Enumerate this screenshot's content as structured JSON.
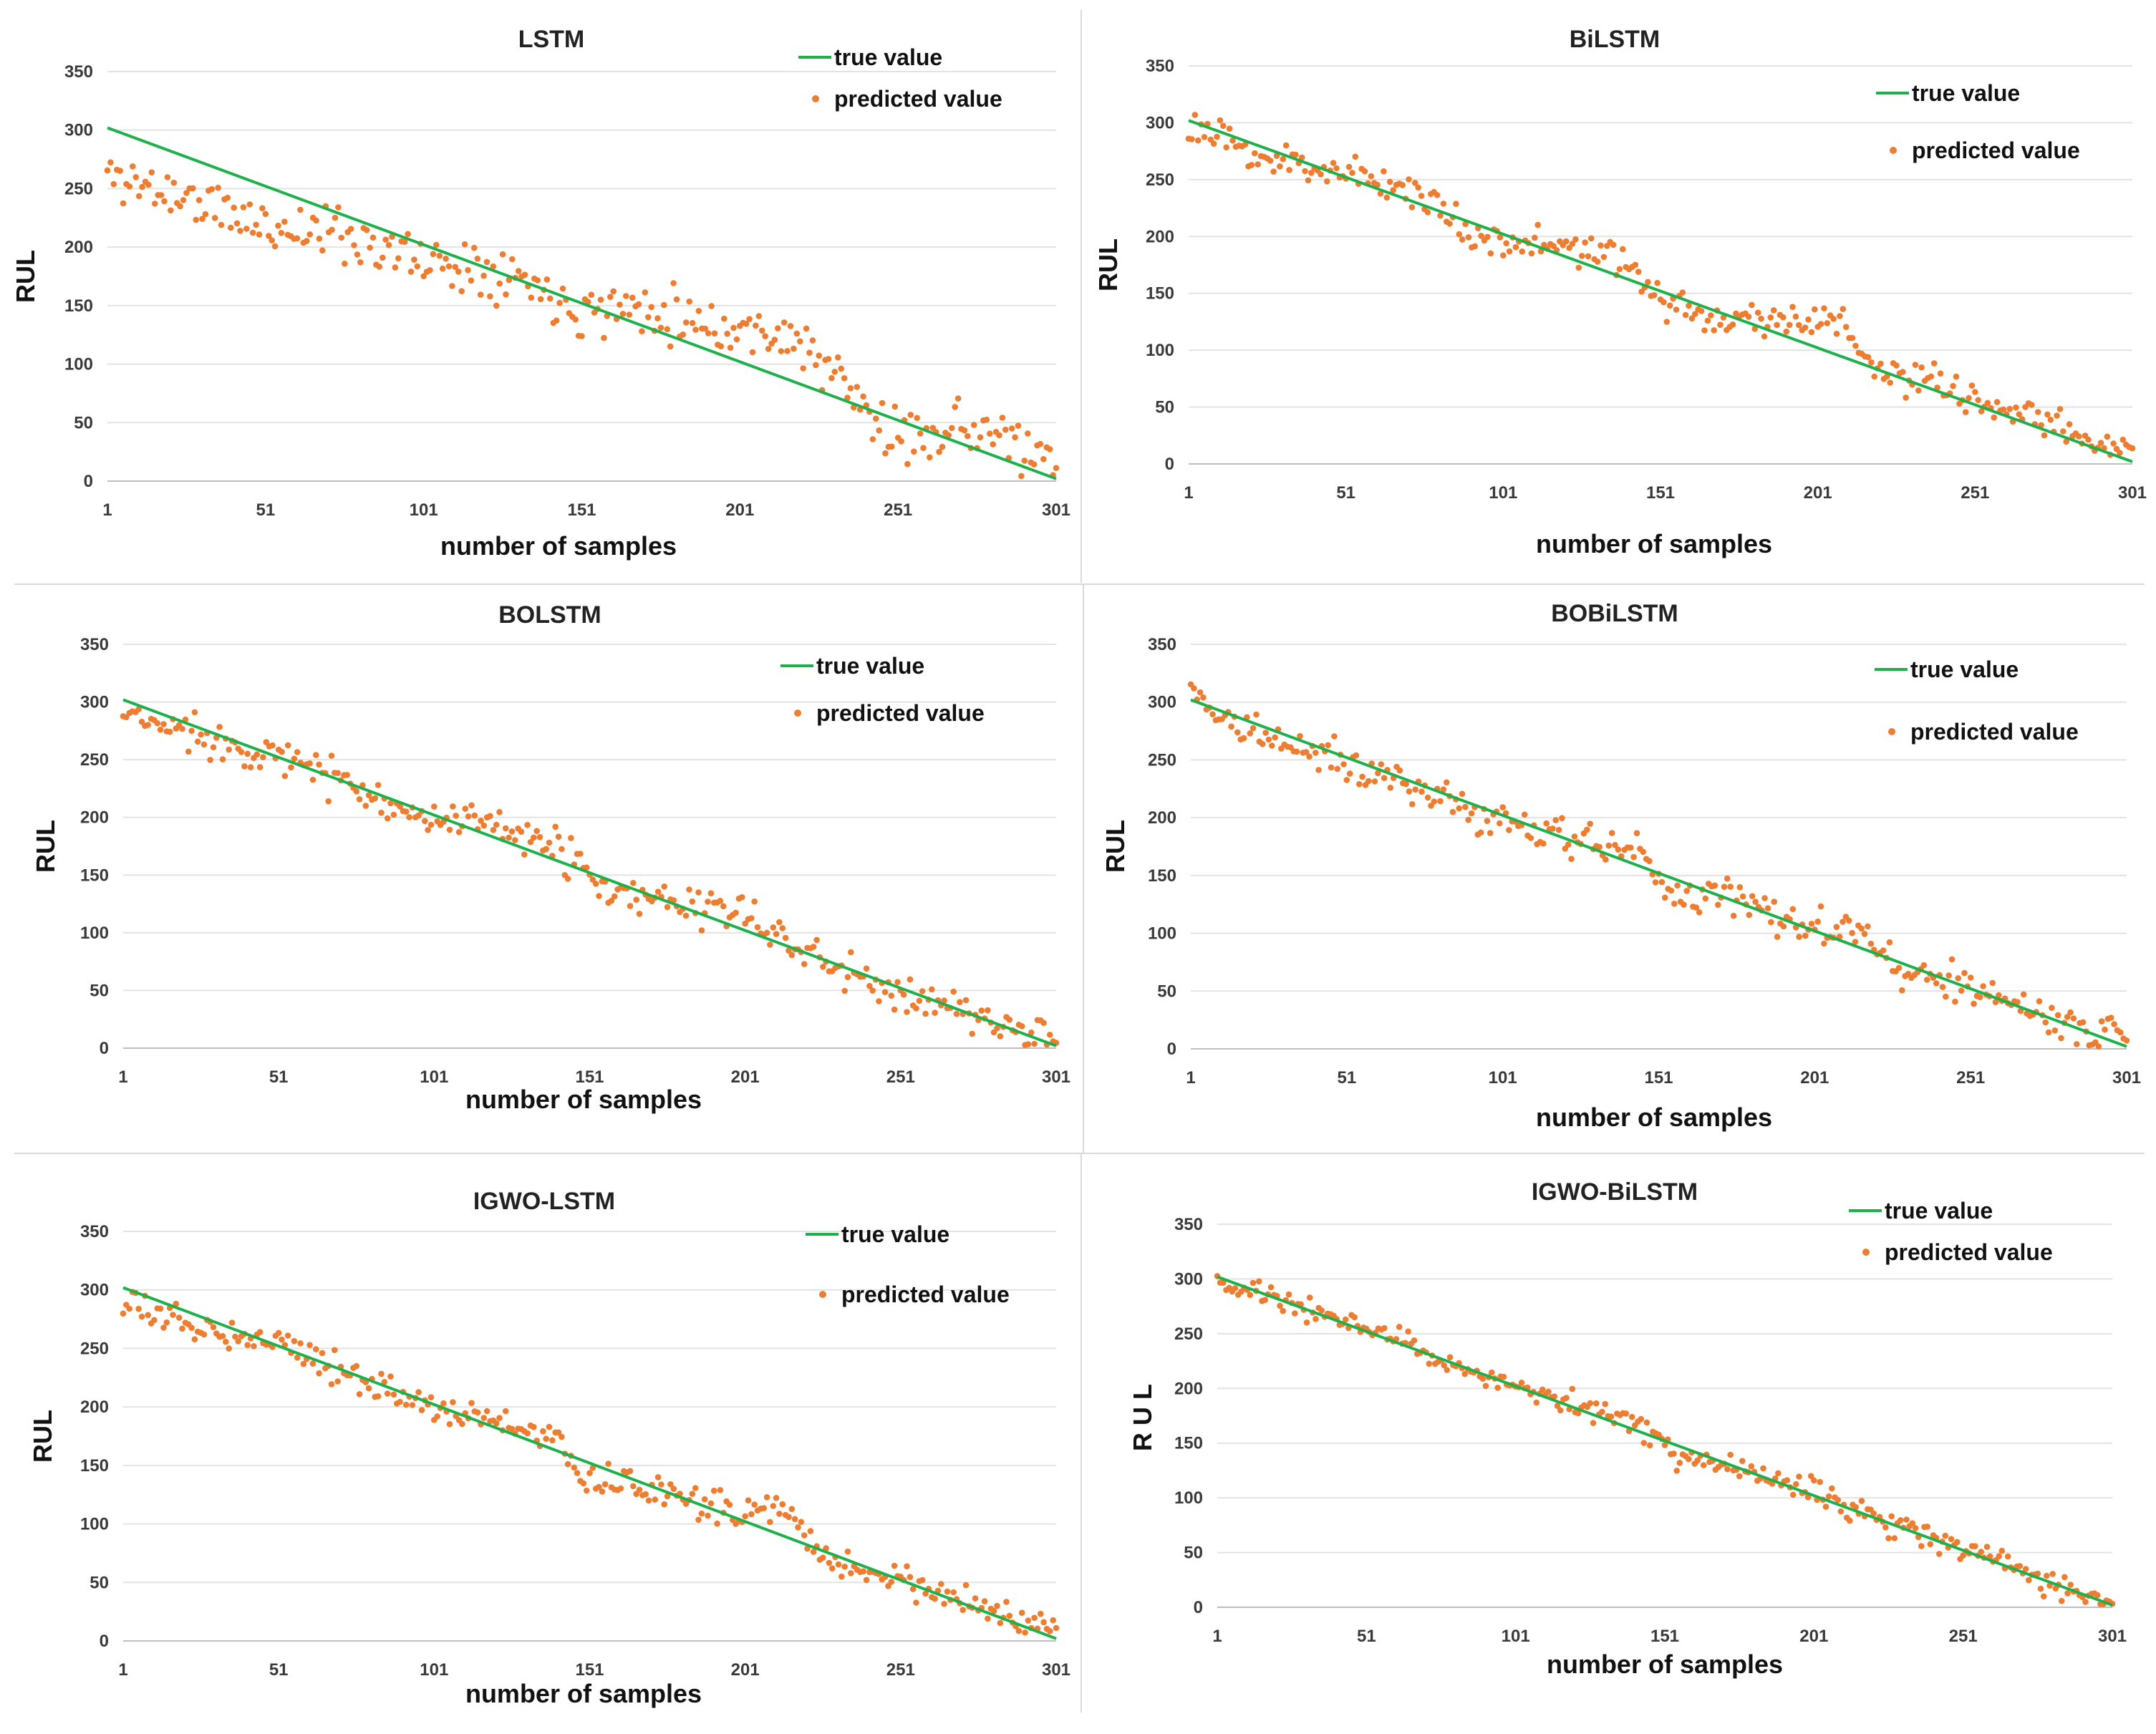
{
  "colors": {
    "true_line": "#1db04b",
    "predicted": "#ed7d31",
    "grid": "#e3e3e3",
    "divider": "#cfcfcf"
  },
  "chart_data": [
    {
      "type": "scatter",
      "title": "LSTM",
      "xlabel": "number of samples",
      "ylabel": "RUL",
      "xlim": [
        1,
        301
      ],
      "ylim": [
        0,
        350
      ],
      "xticks": [
        "1",
        "51",
        "101",
        "151",
        "201",
        "251",
        "301"
      ],
      "yticks": [
        "0",
        "50",
        "100",
        "150",
        "200",
        "250",
        "300",
        "350"
      ],
      "grid": true,
      "legend_position": "top-right",
      "series": [
        {
          "name": "true value",
          "kind": "line",
          "x": [
            1,
            301
          ],
          "y": [
            302,
            2
          ]
        },
        {
          "name": "predicted value",
          "kind": "scatter",
          "bias": [
            [
              1,
              -40
            ],
            [
              25,
              -35
            ],
            [
              50,
              -35
            ],
            [
              75,
              -15
            ],
            [
              100,
              -15
            ],
            [
              125,
              5
            ],
            [
              150,
              -5
            ],
            [
              175,
              20
            ],
            [
              200,
              25
            ],
            [
              215,
              40
            ],
            [
              230,
              20
            ],
            [
              250,
              -20
            ],
            [
              265,
              10
            ],
            [
              280,
              20
            ],
            [
              300,
              5
            ]
          ],
          "noise": 18,
          "seed": 11
        }
      ]
    },
    {
      "type": "scatter",
      "title": "BiLSTM",
      "xlabel": "number of samples",
      "ylabel": "RUL",
      "xlim": [
        1,
        301
      ],
      "ylim": [
        0,
        350
      ],
      "xticks": [
        "1",
        "51",
        "101",
        "151",
        "201",
        "251",
        "301"
      ],
      "yticks": [
        "0",
        "50",
        "100",
        "150",
        "200",
        "250",
        "300",
        "350"
      ],
      "grid": true,
      "legend_position": "top-right",
      "series": [
        {
          "name": "true value",
          "kind": "line",
          "x": [
            1,
            301
          ],
          "y": [
            302,
            2
          ]
        },
        {
          "name": "predicted value",
          "kind": "scatter",
          "bias": [
            [
              1,
              -5
            ],
            [
              25,
              -10
            ],
            [
              50,
              5
            ],
            [
              75,
              10
            ],
            [
              90,
              -10
            ],
            [
              110,
              0
            ],
            [
              130,
              15
            ],
            [
              145,
              5
            ],
            [
              155,
              -10
            ],
            [
              170,
              -5
            ],
            [
              190,
              15
            ],
            [
              210,
              30
            ],
            [
              220,
              -5
            ],
            [
              240,
              5
            ],
            [
              260,
              5
            ],
            [
              280,
              5
            ],
            [
              300,
              10
            ]
          ],
          "noise": 12,
          "seed": 23
        }
      ]
    },
    {
      "type": "scatter",
      "title": "BOLSTM",
      "xlabel": "number of samples",
      "ylabel": "RUL",
      "xlim": [
        1,
        301
      ],
      "ylim": [
        0,
        350
      ],
      "xticks": [
        "1",
        "51",
        "101",
        "151",
        "201",
        "251",
        "301"
      ],
      "yticks": [
        "0",
        "50",
        "100",
        "150",
        "200",
        "250",
        "300",
        "350"
      ],
      "grid": true,
      "legend_position": "top-right",
      "series": [
        {
          "name": "true value",
          "kind": "line",
          "x": [
            1,
            301
          ],
          "y": [
            302,
            2
          ]
        },
        {
          "name": "predicted value",
          "kind": "scatter",
          "bias": [
            [
              1,
              -15
            ],
            [
              25,
              -5
            ],
            [
              50,
              0
            ],
            [
              75,
              0
            ],
            [
              100,
              -5
            ],
            [
              125,
              10
            ],
            [
              145,
              10
            ],
            [
              155,
              -15
            ],
            [
              170,
              -5
            ],
            [
              190,
              10
            ],
            [
              210,
              10
            ],
            [
              230,
              -5
            ],
            [
              250,
              -5
            ],
            [
              270,
              0
            ],
            [
              300,
              5
            ]
          ],
          "noise": 13,
          "seed": 37
        }
      ]
    },
    {
      "type": "scatter",
      "title": "BOBiLSTM",
      "xlabel": "number of samples",
      "ylabel": "RUL",
      "xlim": [
        1,
        301
      ],
      "ylim": [
        0,
        350
      ],
      "xticks": [
        "1",
        "51",
        "101",
        "151",
        "201",
        "251",
        "301"
      ],
      "yticks": [
        "0",
        "50",
        "100",
        "150",
        "200",
        "250",
        "300",
        "350"
      ],
      "grid": true,
      "legend_position": "top-right",
      "series": [
        {
          "name": "true value",
          "kind": "line",
          "x": [
            1,
            301
          ],
          "y": [
            302,
            2
          ]
        },
        {
          "name": "predicted value",
          "kind": "scatter",
          "bias": [
            [
              1,
              5
            ],
            [
              25,
              -10
            ],
            [
              50,
              -5
            ],
            [
              75,
              -5
            ],
            [
              100,
              -5
            ],
            [
              125,
              0
            ],
            [
              145,
              10
            ],
            [
              155,
              -15
            ],
            [
              175,
              5
            ],
            [
              200,
              0
            ],
            [
              215,
              15
            ],
            [
              230,
              -10
            ],
            [
              250,
              0
            ],
            [
              270,
              0
            ],
            [
              300,
              5
            ]
          ],
          "noise": 13,
          "seed": 41
        }
      ]
    },
    {
      "type": "scatter",
      "title": "IGWO-LSTM",
      "xlabel": "number of samples",
      "ylabel": "RUL",
      "xlim": [
        1,
        301
      ],
      "ylim": [
        0,
        350
      ],
      "xticks": [
        "1",
        "51",
        "101",
        "151",
        "201",
        "251",
        "301"
      ],
      "yticks": [
        "0",
        "50",
        "100",
        "150",
        "200",
        "250",
        "300",
        "350"
      ],
      "grid": true,
      "legend_position": "top-right",
      "series": [
        {
          "name": "true value",
          "kind": "line",
          "x": [
            1,
            301
          ],
          "y": [
            302,
            2
          ]
        },
        {
          "name": "predicted value",
          "kind": "scatter",
          "bias": [
            [
              1,
              -15
            ],
            [
              25,
              -10
            ],
            [
              50,
              5
            ],
            [
              75,
              0
            ],
            [
              100,
              -5
            ],
            [
              120,
              5
            ],
            [
              140,
              10
            ],
            [
              150,
              -15
            ],
            [
              175,
              0
            ],
            [
              200,
              5
            ],
            [
              215,
              25
            ],
            [
              225,
              -5
            ],
            [
              250,
              0
            ],
            [
              270,
              0
            ],
            [
              300,
              5
            ]
          ],
          "noise": 10,
          "seed": 53
        }
      ]
    },
    {
      "type": "scatter",
      "title": "IGWO-BiLSTM",
      "xlabel": "number of samples",
      "ylabel": "R U L",
      "xlim": [
        1,
        301
      ],
      "ylim": [
        0,
        350
      ],
      "xticks": [
        "1",
        "51",
        "101",
        "151",
        "201",
        "251",
        "301"
      ],
      "yticks": [
        "0",
        "50",
        "100",
        "150",
        "200",
        "250",
        "300",
        "350"
      ],
      "grid": true,
      "legend_position": "top-right",
      "series": [
        {
          "name": "true value",
          "kind": "line",
          "x": [
            1,
            301
          ],
          "y": [
            302,
            2
          ]
        },
        {
          "name": "predicted value",
          "kind": "scatter",
          "bias": [
            [
              1,
              -5
            ],
            [
              25,
              0
            ],
            [
              50,
              5
            ],
            [
              75,
              0
            ],
            [
              100,
              -5
            ],
            [
              125,
              5
            ],
            [
              145,
              5
            ],
            [
              155,
              -10
            ],
            [
              175,
              0
            ],
            [
              200,
              5
            ],
            [
              225,
              0
            ],
            [
              250,
              5
            ],
            [
              275,
              0
            ],
            [
              300,
              0
            ]
          ],
          "noise": 9,
          "seed": 67
        }
      ]
    }
  ]
}
